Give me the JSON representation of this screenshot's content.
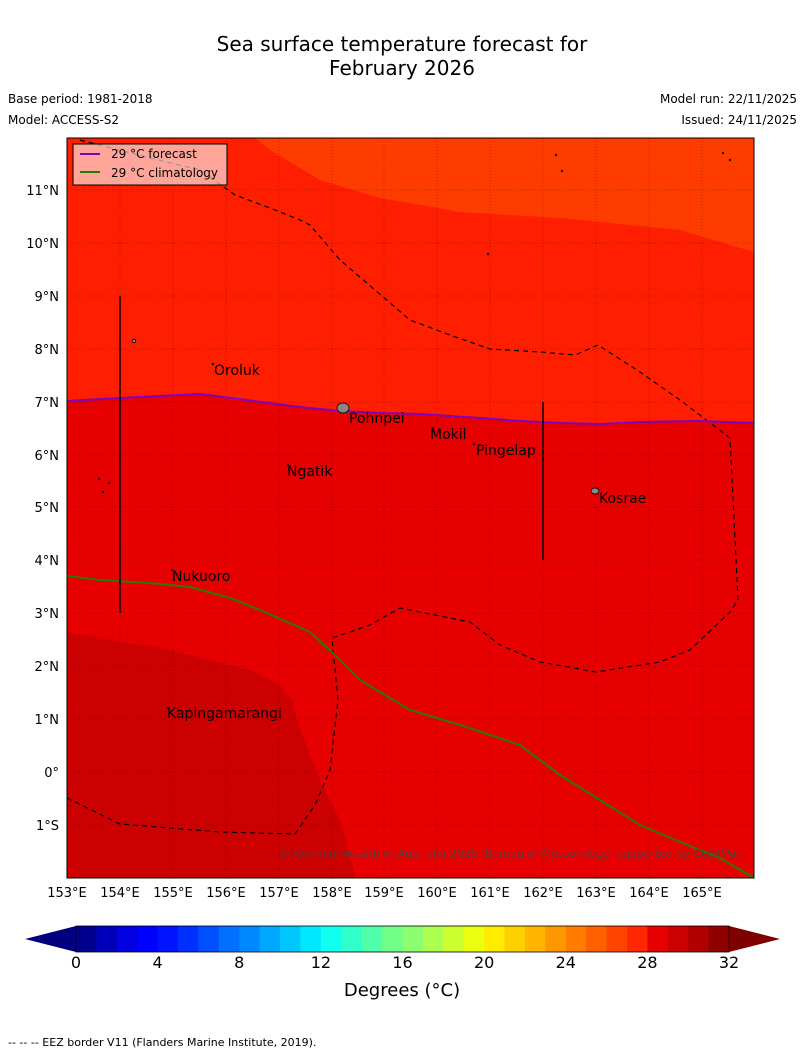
{
  "title_line1": "Sea surface temperature forecast for",
  "title_line2": "February 2026",
  "base_period": "Base period: 1981-2018",
  "model": "Model: ACCESS-S2",
  "model_run": "Model run: 22/11/2025",
  "issued": "Issued: 24/11/2025",
  "legend": {
    "forecast": "29 °C  forecast",
    "climatology": "29 °C  climatology",
    "forecast_color": "#8000c0",
    "climatology_color": "#2a7a00"
  },
  "lat_labels": [
    "11°N",
    "10°N",
    "9°N",
    "8°N",
    "7°N",
    "6°N",
    "5°N",
    "4°N",
    "3°N",
    "2°N",
    "1°N",
    "0°",
    "1°S"
  ],
  "lon_labels": [
    "153°E",
    "154°E",
    "155°E",
    "156°E",
    "157°E",
    "158°E",
    "159°E",
    "160°E",
    "161°E",
    "162°E",
    "163°E",
    "164°E",
    "165°E"
  ],
  "places": {
    "oroluk": "Oroluk",
    "pohnpei": "Pohnpei",
    "mokil": "Mokil",
    "pingelap": "Pingelap",
    "ngatik": "Ngatik",
    "kosrae": "Kosrae",
    "nukuoro": "Nukuoro",
    "kapingamarangi": "Kapingamarangi"
  },
  "copyright": "© Commonwealth of Australia 2025, Bureau of Meteorology, supported by COSPPac",
  "colorbar": {
    "ticks": [
      "0",
      "4",
      "8",
      "12",
      "16",
      "20",
      "24",
      "28",
      "32"
    ],
    "label": "Degrees (°C)",
    "min": 0,
    "max": 32,
    "step": 1,
    "colors": [
      "#00008f",
      "#0000b8",
      "#0000e0",
      "#0000ff",
      "#0014ff",
      "#0030ff",
      "#0050ff",
      "#0070ff",
      "#0088ff",
      "#00a8ff",
      "#00c8ff",
      "#00e8ff",
      "#10ffee",
      "#30ffcc",
      "#50ffaa",
      "#70ff88",
      "#8cff70",
      "#acff50",
      "#ccff30",
      "#ecff10",
      "#ffec00",
      "#ffd000",
      "#ffb400",
      "#ff9800",
      "#ff7c00",
      "#ff6000",
      "#ff4400",
      "#ff2800",
      "#e60000",
      "#cc0000",
      "#b00000",
      "#900000"
    ],
    "under_color": "#000080",
    "over_color": "#800000"
  },
  "sst_colors": {
    "t27_5": "#ff3c00",
    "t28": "#ff1e00",
    "t29": "#e60000",
    "t30": "#cc0000"
  },
  "footnote": "--  --  -- EEZ border V11 (Flanders Marine Institute, 2019)."
}
